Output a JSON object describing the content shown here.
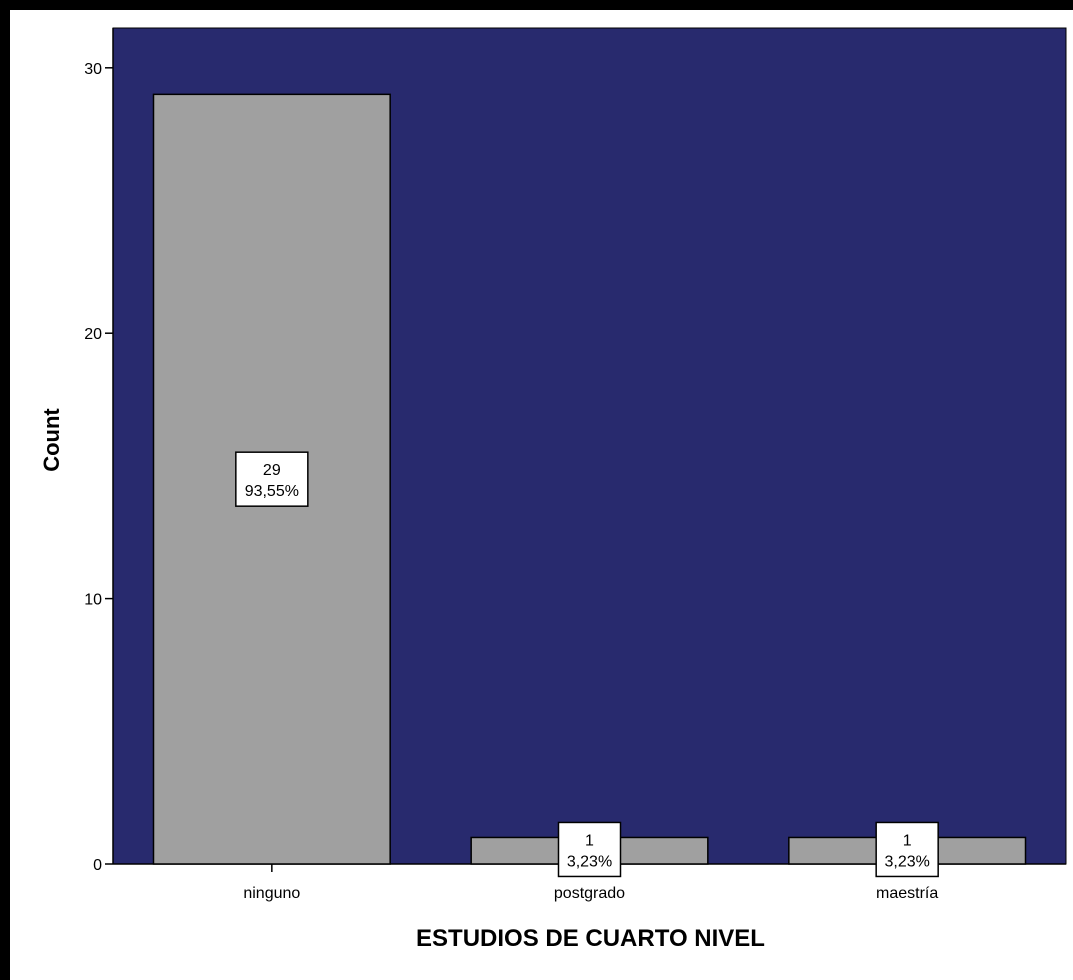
{
  "chart_data": {
    "type": "bar",
    "categories": [
      "ninguno",
      "postgrado",
      "maestría"
    ],
    "values": [
      29,
      1,
      1
    ],
    "percent_labels": [
      "93,55%",
      "3,23%",
      "3,23%"
    ],
    "xlabel": "ESTUDIOS DE CUARTO NIVEL",
    "ylabel": "Count",
    "ylim": [
      0,
      31.5
    ],
    "yticks": [
      0,
      10,
      20,
      30
    ],
    "grid": false,
    "colors": {
      "plot_background": "#282a6e",
      "bar_fill": "#a0a0a0",
      "bar_stroke": "#000000",
      "label_box": "#ffffff"
    }
  }
}
